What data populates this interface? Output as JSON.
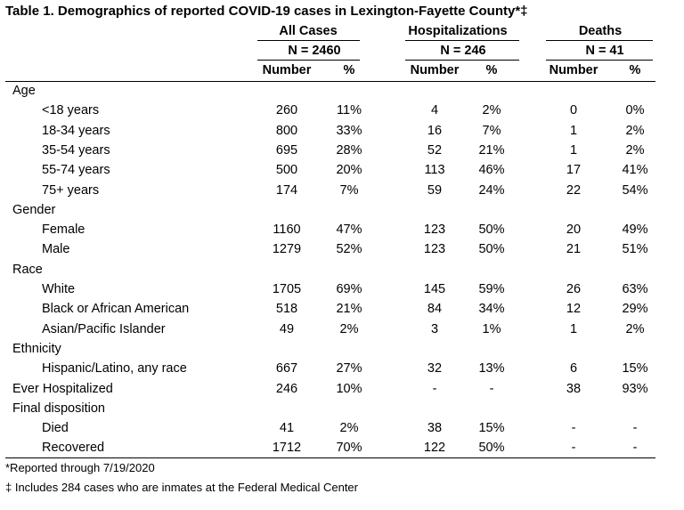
{
  "title": "Table 1. Demographics of reported COVID-19 cases in Lexington-Fayette County*‡",
  "groups": [
    {
      "label": "All Cases",
      "n": "N = 2460"
    },
    {
      "label": "Hospitalizations",
      "n": "N = 246"
    },
    {
      "label": "Deaths",
      "n": "N = 41"
    }
  ],
  "subheaders": [
    "Number",
    "%",
    "Number",
    "%",
    "Number",
    "%"
  ],
  "rows": [
    {
      "label": "Age",
      "indent": false,
      "values": []
    },
    {
      "label": "<18 years",
      "indent": true,
      "values": [
        "260",
        "11%",
        "4",
        "2%",
        "0",
        "0%"
      ]
    },
    {
      "label": "18-34 years",
      "indent": true,
      "values": [
        "800",
        "33%",
        "16",
        "7%",
        "1",
        "2%"
      ]
    },
    {
      "label": "35-54 years",
      "indent": true,
      "values": [
        "695",
        "28%",
        "52",
        "21%",
        "1",
        "2%"
      ]
    },
    {
      "label": "55-74 years",
      "indent": true,
      "values": [
        "500",
        "20%",
        "113",
        "46%",
        "17",
        "41%"
      ]
    },
    {
      "label": "75+ years",
      "indent": true,
      "values": [
        "174",
        "7%",
        "59",
        "24%",
        "22",
        "54%"
      ]
    },
    {
      "label": "Gender",
      "indent": false,
      "values": []
    },
    {
      "label": "Female",
      "indent": true,
      "values": [
        "1160",
        "47%",
        "123",
        "50%",
        "20",
        "49%"
      ]
    },
    {
      "label": "Male",
      "indent": true,
      "values": [
        "1279",
        "52%",
        "123",
        "50%",
        "21",
        "51%"
      ]
    },
    {
      "label": "Race",
      "indent": false,
      "values": []
    },
    {
      "label": "White",
      "indent": true,
      "values": [
        "1705",
        "69%",
        "145",
        "59%",
        "26",
        "63%"
      ]
    },
    {
      "label": "Black or African American",
      "indent": true,
      "values": [
        "518",
        "21%",
        "84",
        "34%",
        "12",
        "29%"
      ]
    },
    {
      "label": "Asian/Pacific Islander",
      "indent": true,
      "values": [
        "49",
        "2%",
        "3",
        "1%",
        "1",
        "2%"
      ]
    },
    {
      "label": "Ethnicity",
      "indent": false,
      "values": []
    },
    {
      "label": "Hispanic/Latino, any race",
      "indent": true,
      "values": [
        "667",
        "27%",
        "32",
        "13%",
        "6",
        "15%"
      ]
    },
    {
      "label": "Ever Hospitalized",
      "indent": false,
      "values": [
        "246",
        "10%",
        "-",
        "-",
        "38",
        "93%"
      ]
    },
    {
      "label": "Final disposition",
      "indent": false,
      "values": []
    },
    {
      "label": "Died",
      "indent": true,
      "values": [
        "41",
        "2%",
        "38",
        "15%",
        "-",
        "-"
      ]
    },
    {
      "label": "Recovered",
      "indent": true,
      "values": [
        "1712",
        "70%",
        "122",
        "50%",
        "-",
        "-"
      ]
    }
  ],
  "footnotes": [
    "*Reported through 7/19/2020",
    "‡ Includes 284 cases who are inmates at the Federal Medical Center"
  ]
}
